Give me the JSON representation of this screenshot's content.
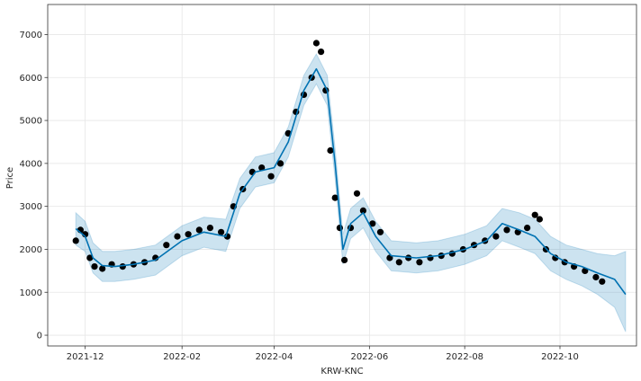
{
  "chart_data": {
    "type": "scatter",
    "title": "",
    "xlabel": "KRW-KNC",
    "ylabel": "Price",
    "x_range": [
      "2021-11-07",
      "2022-11-19"
    ],
    "ylim": [
      -250,
      7700
    ],
    "x_ticks": [
      {
        "date": "2021-12-01",
        "label": "2021-12"
      },
      {
        "date": "2022-02-01",
        "label": "2022-02"
      },
      {
        "date": "2022-04-01",
        "label": "2022-04"
      },
      {
        "date": "2022-06-01",
        "label": "2022-06"
      },
      {
        "date": "2022-08-01",
        "label": "2022-08"
      },
      {
        "date": "2022-10-01",
        "label": "2022-10"
      }
    ],
    "y_ticks": [
      0,
      1000,
      2000,
      3000,
      4000,
      5000,
      6000,
      7000
    ],
    "grid": true,
    "colors": {
      "observed": "#000000",
      "forecast": "#0072B2",
      "interval": "#0072B2",
      "grid": "#e6e6e6",
      "axis": "#333333"
    },
    "series": [
      {
        "kind": "observed",
        "x": [
          "2021-11-25",
          "2021-11-28",
          "2021-12-01",
          "2021-12-04",
          "2021-12-07",
          "2021-12-12",
          "2021-12-18",
          "2021-12-25",
          "2022-01-01",
          "2022-01-08",
          "2022-01-15",
          "2022-01-22",
          "2022-01-29",
          "2022-02-05",
          "2022-02-12",
          "2022-02-19",
          "2022-02-26",
          "2022-03-02",
          "2022-03-06",
          "2022-03-12",
          "2022-03-18",
          "2022-03-24",
          "2022-03-30",
          "2022-04-05",
          "2022-04-10",
          "2022-04-15",
          "2022-04-20",
          "2022-04-25",
          "2022-04-28",
          "2022-05-01",
          "2022-05-04",
          "2022-05-07",
          "2022-05-10",
          "2022-05-13",
          "2022-05-16",
          "2022-05-20",
          "2022-05-24",
          "2022-05-28",
          "2022-06-03",
          "2022-06-08",
          "2022-06-14",
          "2022-06-20",
          "2022-06-26",
          "2022-07-03",
          "2022-07-10",
          "2022-07-17",
          "2022-07-24",
          "2022-07-31",
          "2022-08-07",
          "2022-08-14",
          "2022-08-21",
          "2022-08-28",
          "2022-09-04",
          "2022-09-10",
          "2022-09-15",
          "2022-09-18",
          "2022-09-22",
          "2022-09-28",
          "2022-10-04",
          "2022-10-10",
          "2022-10-17",
          "2022-10-24",
          "2022-10-28"
        ],
        "y": [
          2200,
          2450,
          2350,
          1800,
          1600,
          1550,
          1650,
          1600,
          1650,
          1700,
          1800,
          2100,
          2300,
          2350,
          2450,
          2500,
          2400,
          2300,
          3000,
          3400,
          3800,
          3900,
          3700,
          4000,
          4700,
          5200,
          5600,
          6000,
          6800,
          6600,
          5700,
          4300,
          3200,
          2500,
          1750,
          2500,
          3300,
          2900,
          2600,
          2400,
          1800,
          1700,
          1800,
          1700,
          1800,
          1850,
          1900,
          2000,
          2100,
          2200,
          2300,
          2450,
          2400,
          2500,
          2800,
          2700,
          2000,
          1800,
          1700,
          1600,
          1500,
          1350,
          1250
        ]
      },
      {
        "kind": "forecast",
        "x": [
          "2021-11-25",
          "2021-12-01",
          "2021-12-06",
          "2021-12-12",
          "2021-12-20",
          "2022-01-01",
          "2022-01-15",
          "2022-02-01",
          "2022-02-15",
          "2022-03-01",
          "2022-03-10",
          "2022-03-20",
          "2022-04-01",
          "2022-04-10",
          "2022-04-20",
          "2022-04-28",
          "2022-05-05",
          "2022-05-10",
          "2022-05-15",
          "2022-05-20",
          "2022-05-28",
          "2022-06-05",
          "2022-06-15",
          "2022-07-01",
          "2022-07-15",
          "2022-08-01",
          "2022-08-15",
          "2022-08-25",
          "2022-09-05",
          "2022-09-15",
          "2022-09-25",
          "2022-10-05",
          "2022-10-15",
          "2022-10-25",
          "2022-11-05",
          "2022-11-12"
        ],
        "y": [
          2480,
          2300,
          1800,
          1620,
          1600,
          1650,
          1750,
          2200,
          2400,
          2300,
          3300,
          3800,
          3900,
          4500,
          5700,
          6200,
          5700,
          4000,
          2000,
          2600,
          2850,
          2300,
          1850,
          1800,
          1850,
          2000,
          2200,
          2600,
          2450,
          2300,
          1900,
          1700,
          1600,
          1450,
          1300,
          950
        ]
      },
      {
        "kind": "interval",
        "x": [
          "2021-11-25",
          "2021-12-01",
          "2021-12-06",
          "2021-12-12",
          "2021-12-20",
          "2022-01-01",
          "2022-01-15",
          "2022-02-01",
          "2022-02-15",
          "2022-03-01",
          "2022-03-10",
          "2022-03-20",
          "2022-04-01",
          "2022-04-10",
          "2022-04-20",
          "2022-04-28",
          "2022-05-05",
          "2022-05-10",
          "2022-05-15",
          "2022-05-20",
          "2022-05-28",
          "2022-06-05",
          "2022-06-15",
          "2022-07-01",
          "2022-07-15",
          "2022-08-01",
          "2022-08-15",
          "2022-08-25",
          "2022-09-05",
          "2022-09-15",
          "2022-09-25",
          "2022-10-05",
          "2022-10-15",
          "2022-10-25",
          "2022-11-05",
          "2022-11-12"
        ],
        "upper": [
          2850,
          2650,
          2150,
          1950,
          1950,
          2000,
          2100,
          2550,
          2750,
          2700,
          3650,
          4150,
          4250,
          4850,
          6050,
          6550,
          6050,
          4350,
          2350,
          2950,
          3200,
          2650,
          2200,
          2150,
          2200,
          2350,
          2550,
          2950,
          2850,
          2700,
          2300,
          2100,
          2000,
          1900,
          1850,
          1950
        ],
        "lower": [
          2100,
          1950,
          1450,
          1250,
          1250,
          1300,
          1400,
          1850,
          2050,
          1950,
          2950,
          3450,
          3550,
          4150,
          5350,
          5850,
          5350,
          3650,
          1650,
          2250,
          2500,
          1950,
          1500,
          1450,
          1500,
          1650,
          1850,
          2200,
          2050,
          1900,
          1500,
          1300,
          1150,
          950,
          650,
          80
        ]
      }
    ]
  }
}
